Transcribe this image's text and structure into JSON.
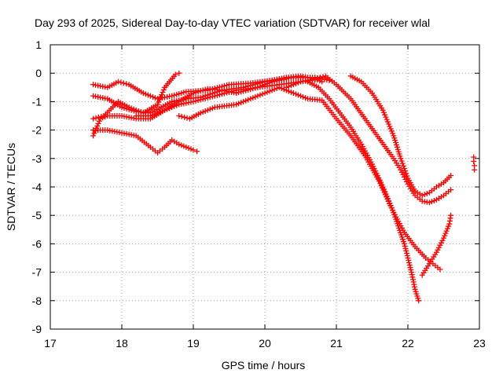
{
  "chart_data": {
    "type": "scatter",
    "title": "Day 293 of 2025, Sidereal Day-to-day VTEC variation (SDTVAR) for receiver wlal",
    "xlabel": "GPS time / hours",
    "ylabel": "SDTVAR / TECUs",
    "xlim": [
      17,
      23
    ],
    "ylim": [
      -9,
      1
    ],
    "x_ticks": [
      17,
      18,
      19,
      20,
      21,
      22,
      23
    ],
    "y_ticks": [
      1,
      0,
      -1,
      -2,
      -3,
      -4,
      -5,
      -6,
      -7,
      -8,
      -9
    ],
    "grid": true,
    "legend": "none",
    "marker": "plus",
    "color": "#ff0000",
    "series": [
      {
        "name": "track-1",
        "points": [
          [
            17.6,
            -0.4
          ],
          [
            17.8,
            -0.5
          ],
          [
            17.95,
            -0.3
          ],
          [
            18.1,
            -0.4
          ],
          [
            18.3,
            -0.7
          ],
          [
            18.5,
            -0.9
          ],
          [
            18.7,
            -0.8
          ],
          [
            18.9,
            -0.65
          ],
          [
            19.2,
            -0.6
          ],
          [
            19.5,
            -0.4
          ],
          [
            19.8,
            -0.35
          ],
          [
            20.1,
            -0.25
          ],
          [
            20.4,
            -0.15
          ],
          [
            20.7,
            -0.15
          ],
          [
            20.9,
            -0.25
          ]
        ]
      },
      {
        "name": "track-2",
        "points": [
          [
            17.6,
            -0.8
          ],
          [
            17.8,
            -0.9
          ],
          [
            18.0,
            -1.2
          ],
          [
            18.2,
            -1.35
          ],
          [
            18.4,
            -1.4
          ],
          [
            18.55,
            -1.2
          ],
          [
            18.7,
            -1.0
          ],
          [
            18.9,
            -0.9
          ],
          [
            19.1,
            -0.85
          ],
          [
            19.4,
            -0.6
          ],
          [
            19.7,
            -0.5
          ],
          [
            20.0,
            -0.3
          ],
          [
            20.3,
            -0.15
          ],
          [
            20.5,
            -0.1
          ],
          [
            20.7,
            -0.2
          ],
          [
            20.8,
            -0.3
          ]
        ]
      },
      {
        "name": "track-3",
        "points": [
          [
            17.6,
            -1.6
          ],
          [
            17.75,
            -1.5
          ],
          [
            17.95,
            -1.0
          ],
          [
            18.1,
            -1.2
          ],
          [
            18.3,
            -1.4
          ],
          [
            18.5,
            -1.1
          ],
          [
            18.6,
            -0.5
          ],
          [
            18.75,
            -0.05
          ],
          [
            18.8,
            0.0
          ]
        ]
      },
      {
        "name": "track-4",
        "points": [
          [
            17.6,
            -2.2
          ],
          [
            17.7,
            -1.6
          ],
          [
            17.8,
            -1.5
          ],
          [
            18.0,
            -1.5
          ],
          [
            18.2,
            -1.6
          ],
          [
            18.4,
            -1.6
          ],
          [
            18.6,
            -1.3
          ],
          [
            18.8,
            -1.1
          ],
          [
            19.0,
            -1.0
          ],
          [
            19.3,
            -0.8
          ],
          [
            19.6,
            -0.6
          ],
          [
            19.9,
            -0.5
          ],
          [
            20.2,
            -0.4
          ],
          [
            20.5,
            -0.3
          ],
          [
            20.8,
            -0.2
          ]
        ]
      },
      {
        "name": "track-5",
        "points": [
          [
            17.6,
            -2.0
          ],
          [
            17.8,
            -2.0
          ],
          [
            18.0,
            -2.1
          ],
          [
            18.2,
            -2.2
          ],
          [
            18.4,
            -2.6
          ],
          [
            18.5,
            -2.8
          ],
          [
            18.6,
            -2.6
          ],
          [
            18.7,
            -2.35
          ],
          [
            18.8,
            -2.5
          ],
          [
            18.9,
            -2.6
          ],
          [
            19.0,
            -2.7
          ],
          [
            19.05,
            -2.75
          ]
        ]
      },
      {
        "name": "track-6",
        "points": [
          [
            18.2,
            -1.5
          ],
          [
            18.4,
            -1.5
          ],
          [
            18.6,
            -1.3
          ],
          [
            18.8,
            -1.0
          ],
          [
            19.0,
            -0.7
          ],
          [
            19.2,
            -0.55
          ],
          [
            19.4,
            -0.6
          ],
          [
            19.6,
            -0.7
          ],
          [
            19.9,
            -0.5
          ],
          [
            20.1,
            -0.3
          ],
          [
            20.3,
            -0.2
          ]
        ]
      },
      {
        "name": "track-7",
        "points": [
          [
            18.8,
            -1.5
          ],
          [
            18.95,
            -1.6
          ],
          [
            19.1,
            -1.4
          ],
          [
            19.3,
            -1.2
          ],
          [
            19.6,
            -1.1
          ],
          [
            19.9,
            -0.8
          ],
          [
            20.1,
            -0.6
          ],
          [
            20.2,
            -0.5
          ],
          [
            20.4,
            -0.7
          ],
          [
            20.6,
            -0.9
          ],
          [
            20.8,
            -0.95
          ],
          [
            21.0,
            -1.6
          ],
          [
            21.2,
            -2.2
          ],
          [
            21.4,
            -2.9
          ],
          [
            21.6,
            -3.8
          ],
          [
            21.8,
            -4.9
          ],
          [
            21.95,
            -6.0
          ],
          [
            22.05,
            -7.0
          ],
          [
            22.1,
            -7.6
          ],
          [
            22.15,
            -8.0
          ]
        ]
      },
      {
        "name": "track-8",
        "points": [
          [
            20.3,
            -0.5
          ],
          [
            20.5,
            -0.3
          ],
          [
            20.7,
            -0.2
          ],
          [
            20.85,
            -0.1
          ],
          [
            21.0,
            -0.4
          ],
          [
            21.2,
            -0.9
          ],
          [
            21.4,
            -1.6
          ],
          [
            21.6,
            -2.3
          ],
          [
            21.8,
            -3.0
          ],
          [
            21.9,
            -3.4
          ],
          [
            22.0,
            -3.9
          ],
          [
            22.1,
            -4.3
          ],
          [
            22.2,
            -4.5
          ],
          [
            22.3,
            -4.55
          ],
          [
            22.4,
            -4.45
          ],
          [
            22.5,
            -4.3
          ],
          [
            22.6,
            -4.1
          ]
        ]
      },
      {
        "name": "track-9",
        "points": [
          [
            21.2,
            -0.1
          ],
          [
            21.35,
            -0.3
          ],
          [
            21.5,
            -0.7
          ],
          [
            21.65,
            -1.3
          ],
          [
            21.8,
            -2.2
          ],
          [
            21.9,
            -3.0
          ],
          [
            22.0,
            -3.7
          ],
          [
            22.1,
            -4.15
          ],
          [
            22.2,
            -4.3
          ],
          [
            22.3,
            -4.2
          ],
          [
            22.4,
            -4.0
          ],
          [
            22.5,
            -3.85
          ],
          [
            22.6,
            -3.6
          ]
        ]
      },
      {
        "name": "track-10",
        "points": [
          [
            20.6,
            -0.3
          ],
          [
            20.75,
            -0.5
          ],
          [
            20.9,
            -0.9
          ],
          [
            21.05,
            -1.4
          ],
          [
            21.2,
            -1.9
          ],
          [
            21.35,
            -2.5
          ],
          [
            21.5,
            -3.2
          ],
          [
            21.65,
            -4.0
          ],
          [
            21.8,
            -4.9
          ],
          [
            21.95,
            -5.6
          ],
          [
            22.1,
            -6.1
          ],
          [
            22.25,
            -6.5
          ],
          [
            22.35,
            -6.7
          ],
          [
            22.45,
            -6.9
          ]
        ]
      },
      {
        "name": "track-11",
        "points": [
          [
            22.2,
            -7.1
          ],
          [
            22.3,
            -6.7
          ],
          [
            22.4,
            -6.3
          ],
          [
            22.5,
            -5.8
          ],
          [
            22.58,
            -5.3
          ],
          [
            22.6,
            -5.0
          ]
        ]
      },
      {
        "name": "track-12",
        "points": [
          [
            22.92,
            -2.95
          ],
          [
            22.92,
            -3.1
          ],
          [
            22.93,
            -3.25
          ],
          [
            22.93,
            -3.4
          ]
        ]
      }
    ]
  }
}
